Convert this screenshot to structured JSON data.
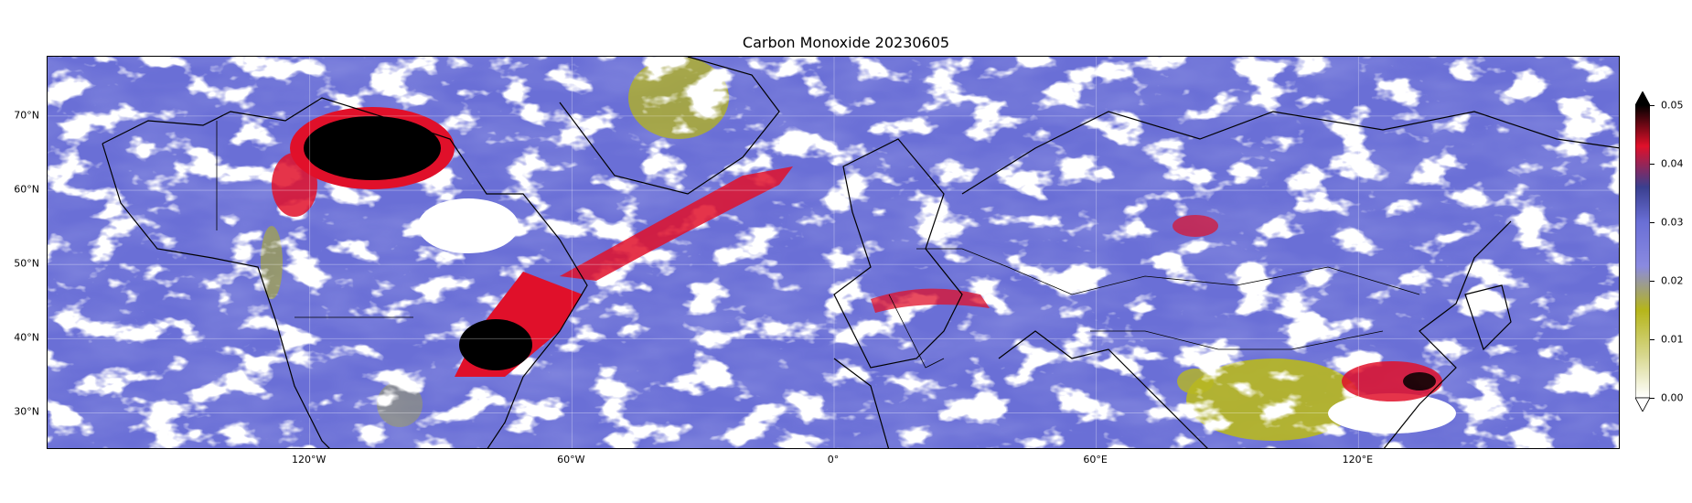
{
  "title": "Carbon Monoxide 20230605",
  "map": {
    "projection": "equirectangular",
    "lon_range": [
      -180,
      180
    ],
    "lat_range": [
      25,
      78
    ],
    "lat_labels": [
      {
        "lat": 70,
        "text": "70°N"
      },
      {
        "lat": 60,
        "text": "60°N"
      },
      {
        "lat": 50,
        "text": "50°N"
      },
      {
        "lat": 40,
        "text": "40°N"
      },
      {
        "lat": 30,
        "text": "30°N"
      }
    ],
    "lon_labels": [
      {
        "lon": -120,
        "text": "120°W"
      },
      {
        "lon": -60,
        "text": "60°W"
      },
      {
        "lon": 0,
        "text": "0°"
      },
      {
        "lon": 60,
        "text": "60°E"
      },
      {
        "lon": 120,
        "text": "120°E"
      }
    ],
    "colors": {
      "background_field": "#6a6fd6",
      "missing_data": "#ffffff",
      "low": "#b8b820",
      "high_red": "#e0102a",
      "max_black": "#000000",
      "coastline": "#000000"
    }
  },
  "colorbar": {
    "ticks": [
      "0.05",
      "0.04",
      "0.03",
      "0.02",
      "0.01",
      "0.00"
    ],
    "range": [
      0.0,
      0.05
    ],
    "extend": "both",
    "colors": [
      "#ffffff",
      "#d6d68a",
      "#b5b51a",
      "#8a8ae0",
      "#6a6fd6",
      "#3a3f8f",
      "#e0102a",
      "#000000"
    ]
  }
}
